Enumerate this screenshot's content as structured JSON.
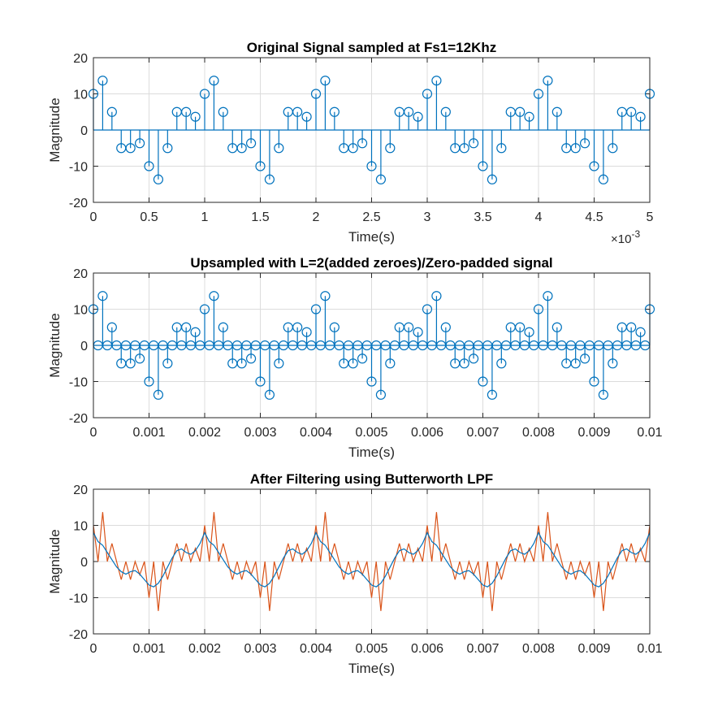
{
  "colors": {
    "stem": "#0072BD",
    "filtered": "#0072BD",
    "upsampled": "#D95319"
  },
  "chart_data": [
    {
      "type": "stem",
      "title": "Original Signal sampled at Fs1=12Khz",
      "xlabel": "Time(s)",
      "ylabel": "Magnitude",
      "x_exponent": "×10",
      "x_exponent_power": "-3",
      "xlim": [
        0,
        5
      ],
      "ylim": [
        -20,
        20
      ],
      "xticks": [
        0,
        0.5,
        1,
        1.5,
        2,
        2.5,
        3,
        3.5,
        4,
        4.5,
        5
      ],
      "xtick_labels": [
        "0",
        "0.5",
        "1",
        "1.5",
        "2",
        "2.5",
        "3",
        "3.5",
        "4",
        "4.5",
        "5"
      ],
      "yticks": [
        -20,
        -10,
        0,
        10,
        20
      ],
      "ytick_labels": [
        "-20",
        "-10",
        "0",
        "10",
        "20"
      ],
      "grid": true,
      "sample_period": 0.0833333,
      "pattern": [
        10,
        13.66,
        5,
        -5,
        -5,
        -3.66,
        -10,
        -13.66,
        -5,
        5,
        5,
        3.66
      ],
      "num_samples": 61
    },
    {
      "type": "stem",
      "title": "Upsampled with L=2(added zeroes)/Zero-padded signal",
      "xlabel": "Time(s)",
      "ylabel": "Magnitude",
      "xlim": [
        0,
        0.01
      ],
      "ylim": [
        -20,
        20
      ],
      "xticks": [
        0,
        0.001,
        0.002,
        0.003,
        0.004,
        0.005,
        0.006,
        0.007,
        0.008,
        0.009,
        0.01
      ],
      "xtick_labels": [
        "0",
        "0.001",
        "0.002",
        "0.003",
        "0.004",
        "0.005",
        "0.006",
        "0.007",
        "0.008",
        "0.009",
        "0.01"
      ],
      "yticks": [
        -20,
        -10,
        0,
        10,
        20
      ],
      "ytick_labels": [
        "-20",
        "-10",
        "0",
        "10",
        "20"
      ],
      "grid": true,
      "sample_period": 8.33333e-05,
      "pattern": [
        10,
        0,
        13.66,
        0,
        5,
        0,
        -5,
        0,
        -5,
        0,
        -3.66,
        0,
        -10,
        0,
        -13.66,
        0,
        -5,
        0,
        5,
        0,
        5,
        0,
        3.66,
        0
      ],
      "num_samples": 121
    },
    {
      "type": "line",
      "title": "After Filtering using Butterworth LPF",
      "xlabel": "Time(s)",
      "ylabel": "Magnitude",
      "xlim": [
        0,
        0.01
      ],
      "ylim": [
        -20,
        20
      ],
      "xticks": [
        0,
        0.001,
        0.002,
        0.003,
        0.004,
        0.005,
        0.006,
        0.007,
        0.008,
        0.009,
        0.01
      ],
      "xtick_labels": [
        "0",
        "0.001",
        "0.002",
        "0.003",
        "0.004",
        "0.005",
        "0.006",
        "0.007",
        "0.008",
        "0.009",
        "0.01"
      ],
      "yticks": [
        -20,
        -10,
        0,
        10,
        20
      ],
      "ytick_labels": [
        "-20",
        "-10",
        "0",
        "10",
        "20"
      ],
      "grid": true,
      "sample_period": 8.33333e-05,
      "series": [
        {
          "role": "upsampled",
          "pattern": [
            10,
            0,
            13.66,
            0,
            5,
            0,
            -5,
            0,
            -5,
            0,
            -3.66,
            0,
            -10,
            0,
            -13.66,
            0,
            -5,
            0,
            5,
            0,
            5,
            0,
            3.66,
            0
          ]
        },
        {
          "role": "filtered",
          "pattern": [
            8,
            5.5,
            4.5,
            2.5,
            0.5,
            -1.5,
            -2.8,
            -3.5,
            -2.8,
            -2.5,
            -3.5,
            -5,
            -6.5,
            -7,
            -6,
            -4,
            -1.5,
            1,
            3,
            3.5,
            2.5,
            2,
            3,
            5
          ]
        }
      ],
      "num_samples": 121
    }
  ]
}
